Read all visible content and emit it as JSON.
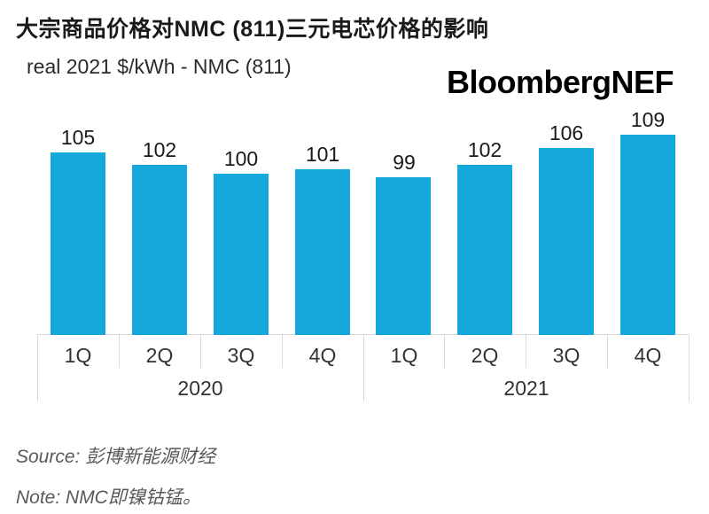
{
  "header": {
    "title": "大宗商品价格对NMC (811)三元电芯价格的影响",
    "subtitle": "real 2021 $/kWh - NMC (811)",
    "logo": "BloombergNEF"
  },
  "chart_data": {
    "type": "bar",
    "title": "大宗商品价格对NMC (811)三元电芯价格的影响",
    "subtitle": "real 2021 $/kWh - NMC (811)",
    "ylabel": "real 2021 $/kWh",
    "xlabel": "",
    "categories": [
      "1Q",
      "2Q",
      "3Q",
      "4Q",
      "1Q",
      "2Q",
      "3Q",
      "4Q"
    ],
    "year_groups": [
      {
        "label": "2020",
        "count": 4
      },
      {
        "label": "2021",
        "count": 4
      }
    ],
    "values": [
      105,
      102,
      100,
      101,
      99,
      102,
      106,
      109
    ],
    "data_labels": [
      "105",
      "102",
      "100",
      "101",
      "99",
      "102",
      "106",
      "109"
    ],
    "ylim": [
      62,
      110
    ],
    "grid": false,
    "legend": false,
    "bar_color": "#14a8dd",
    "axis_line_color": "#d9d9d9",
    "label_color": "#1a1a1a"
  },
  "footer": {
    "source": "Source: 彭博新能源财经",
    "note": "Note: NMC即镍钴锰。"
  }
}
